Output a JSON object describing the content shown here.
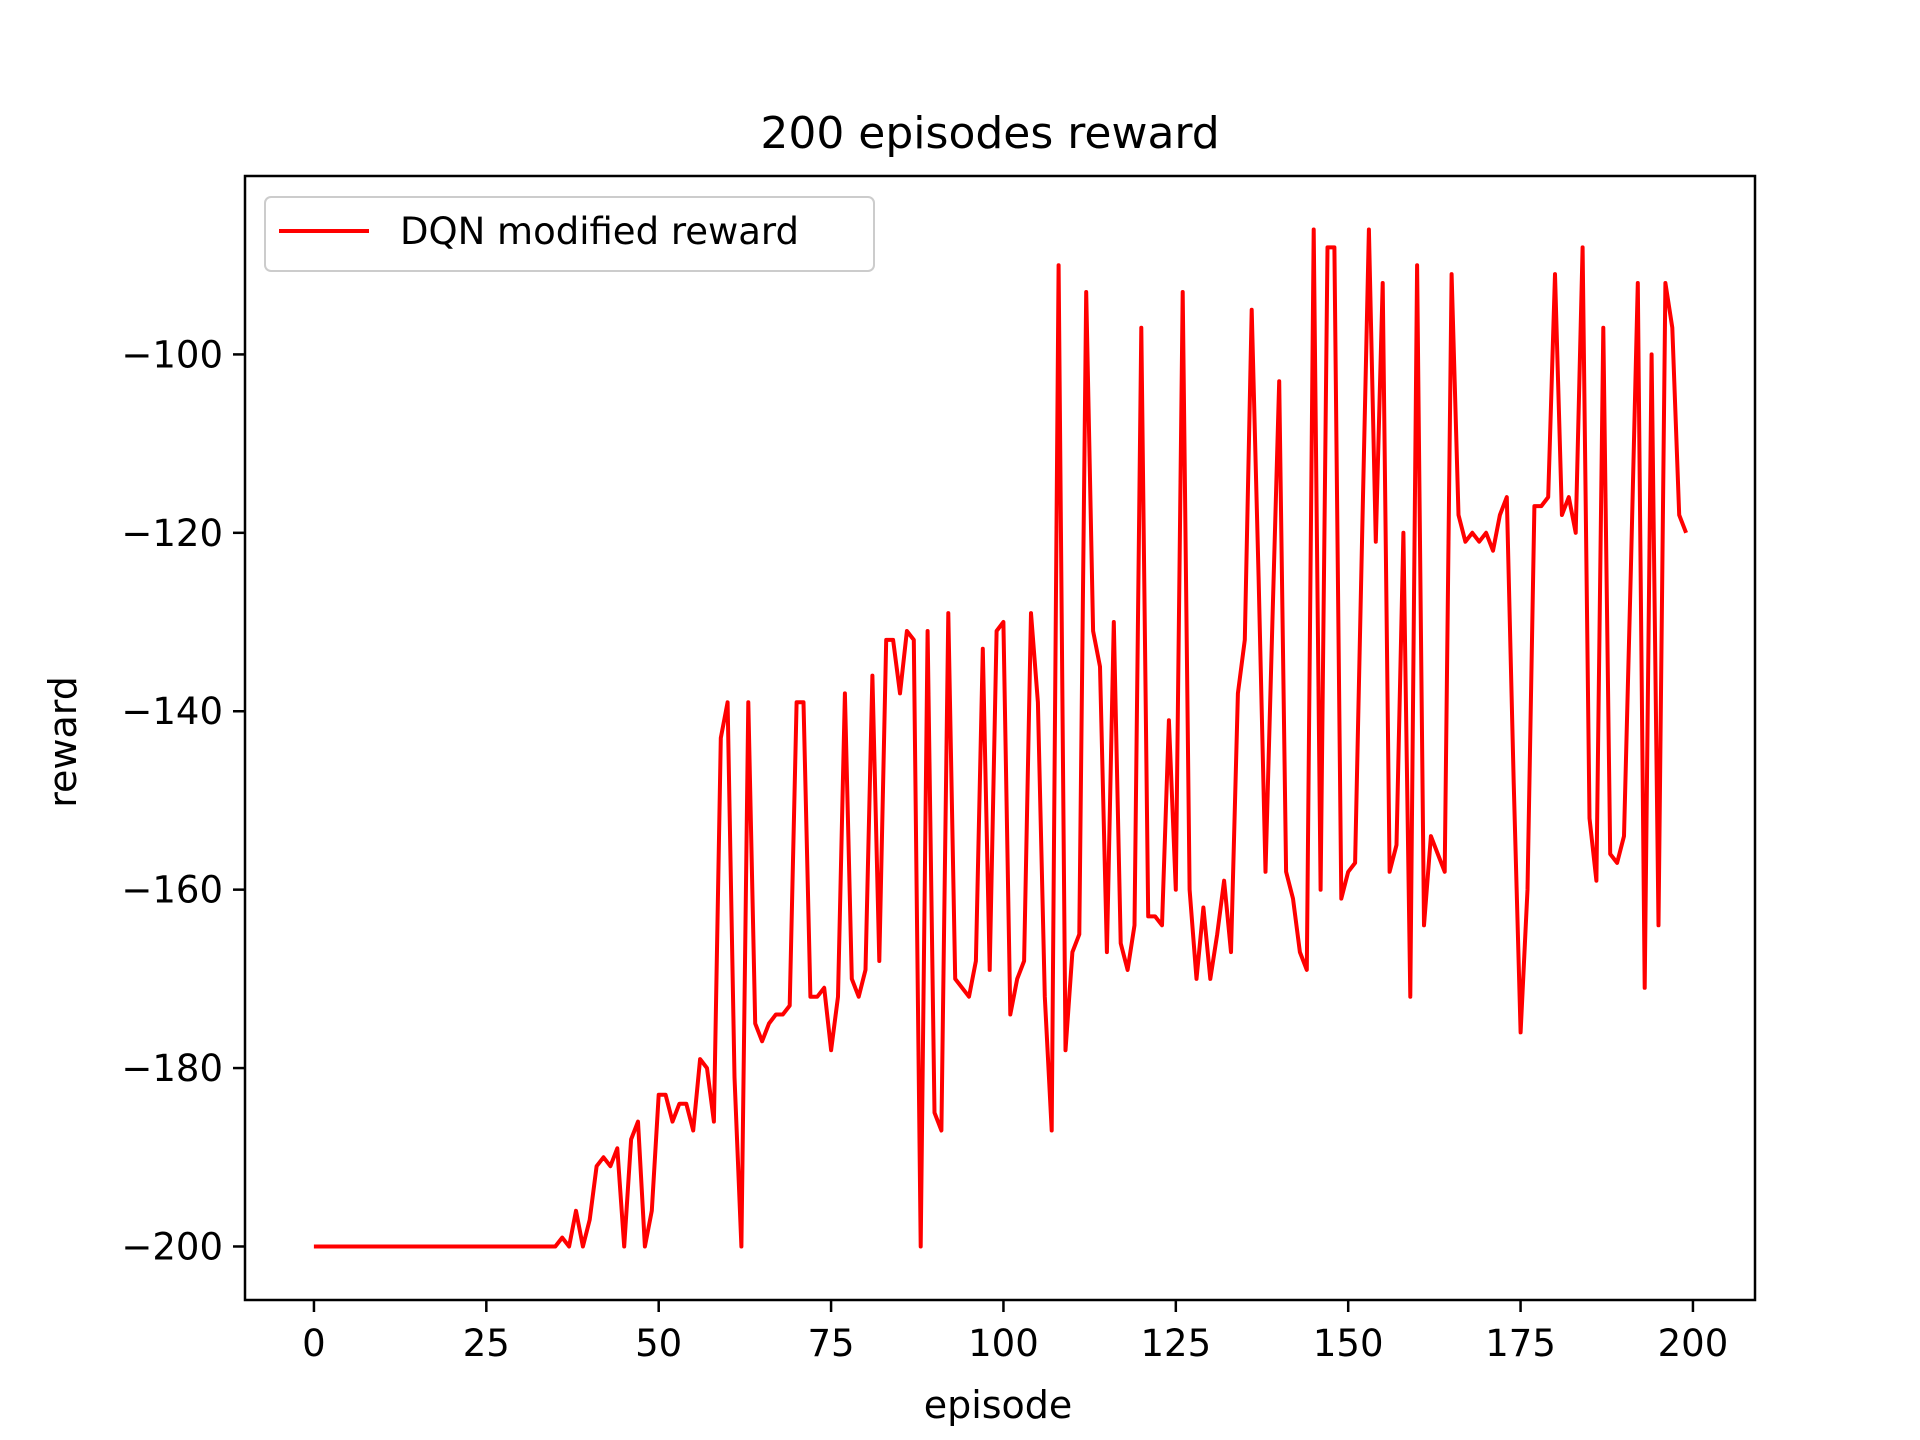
{
  "chart_data": {
    "type": "line",
    "title": "200 episodes reward",
    "xlabel": "episode",
    "ylabel": "reward",
    "xlim": [
      -10,
      209
    ],
    "ylim": [
      -206,
      -80
    ],
    "xticks": [
      0,
      25,
      50,
      75,
      100,
      125,
      150,
      175,
      200
    ],
    "yticks": [
      -100,
      -120,
      -140,
      -160,
      -180,
      -200
    ],
    "xtick_labels": [
      "0",
      "25",
      "50",
      "75",
      "100",
      "125",
      "150",
      "175",
      "200"
    ],
    "ytick_labels": [
      "−100",
      "−120",
      "−140",
      "−160",
      "−180",
      "−200"
    ],
    "grid": false,
    "legend_position": "top-left",
    "series": [
      {
        "name": "DQN modified reward",
        "color": "#ff0000",
        "x": [
          0,
          1,
          2,
          3,
          4,
          5,
          6,
          7,
          8,
          9,
          10,
          11,
          12,
          13,
          14,
          15,
          16,
          17,
          18,
          19,
          20,
          21,
          22,
          23,
          24,
          25,
          26,
          27,
          28,
          29,
          30,
          31,
          32,
          33,
          34,
          35,
          36,
          37,
          38,
          39,
          40,
          41,
          42,
          43,
          44,
          45,
          46,
          47,
          48,
          49,
          50,
          51,
          52,
          53,
          54,
          55,
          56,
          57,
          58,
          59,
          60,
          61,
          62,
          63,
          64,
          65,
          66,
          67,
          68,
          69,
          70,
          71,
          72,
          73,
          74,
          75,
          76,
          77,
          78,
          79,
          80,
          81,
          82,
          83,
          84,
          85,
          86,
          87,
          88,
          89,
          90,
          91,
          92,
          93,
          94,
          95,
          96,
          97,
          98,
          99,
          100,
          101,
          102,
          103,
          104,
          105,
          106,
          107,
          108,
          109,
          110,
          111,
          112,
          113,
          114,
          115,
          116,
          117,
          118,
          119,
          120,
          121,
          122,
          123,
          124,
          125,
          126,
          127,
          128,
          129,
          130,
          131,
          132,
          133,
          134,
          135,
          136,
          137,
          138,
          139,
          140,
          141,
          142,
          143,
          144,
          145,
          146,
          147,
          148,
          149,
          150,
          151,
          152,
          153,
          154,
          155,
          156,
          157,
          158,
          159,
          160,
          161,
          162,
          163,
          164,
          165,
          166,
          167,
          168,
          169,
          170,
          171,
          172,
          173,
          174,
          175,
          176,
          177,
          178,
          179,
          180,
          181,
          182,
          183,
          184,
          185,
          186,
          187,
          188,
          189,
          190,
          191,
          192,
          193,
          194,
          195,
          196,
          197,
          198,
          199
        ],
        "y": [
          -200,
          -200,
          -200,
          -200,
          -200,
          -200,
          -200,
          -200,
          -200,
          -200,
          -200,
          -200,
          -200,
          -200,
          -200,
          -200,
          -200,
          -200,
          -200,
          -200,
          -200,
          -200,
          -200,
          -200,
          -200,
          -200,
          -200,
          -200,
          -200,
          -200,
          -200,
          -200,
          -200,
          -200,
          -200,
          -200,
          -199,
          -200,
          -196,
          -200,
          -197,
          -191,
          -190,
          -191,
          -189,
          -200,
          -188,
          -186,
          -200,
          -196,
          -183,
          -183,
          -186,
          -184,
          -184,
          -187,
          -179,
          -180,
          -186,
          -143,
          -139,
          -181,
          -200,
          -139,
          -175,
          -177,
          -175,
          -174,
          -174,
          -173,
          -139,
          -139,
          -172,
          -172,
          -171,
          -178,
          -172,
          -138,
          -170,
          -172,
          -169,
          -136,
          -168,
          -132,
          -132,
          -138,
          -131,
          -132,
          -200,
          -131,
          -185,
          -187,
          -129,
          -170,
          -171,
          -172,
          -168,
          -133,
          -169,
          -131,
          -130,
          -174,
          -170,
          -168,
          -129,
          -139,
          -172,
          -187,
          -90,
          -178,
          -167,
          -165,
          -93,
          -131,
          -135,
          -167,
          -130,
          -166,
          -169,
          -164,
          -97,
          -163,
          -163,
          -164,
          -141,
          -160,
          -93,
          -160,
          -170,
          -162,
          -170,
          -165,
          -159,
          -167,
          -138,
          -132,
          -95,
          -125,
          -158,
          -130,
          -103,
          -158,
          -161,
          -167,
          -169,
          -86,
          -160,
          -88,
          -88,
          -161,
          -158,
          -157,
          -121,
          -86,
          -121,
          -92,
          -158,
          -155,
          -120,
          -172,
          -90,
          -164,
          -154,
          -156,
          -158,
          -91,
          -118,
          -121,
          -120,
          -121,
          -120,
          -122,
          -118,
          -116,
          -148,
          -176,
          -160,
          -117,
          -117,
          -116,
          -91,
          -118,
          -116,
          -120,
          -88,
          -152,
          -159,
          -97,
          -156,
          -157,
          -154,
          -124,
          -92,
          -171,
          -100,
          -164,
          -92,
          -97,
          -118,
          -120
        ]
      }
    ]
  }
}
